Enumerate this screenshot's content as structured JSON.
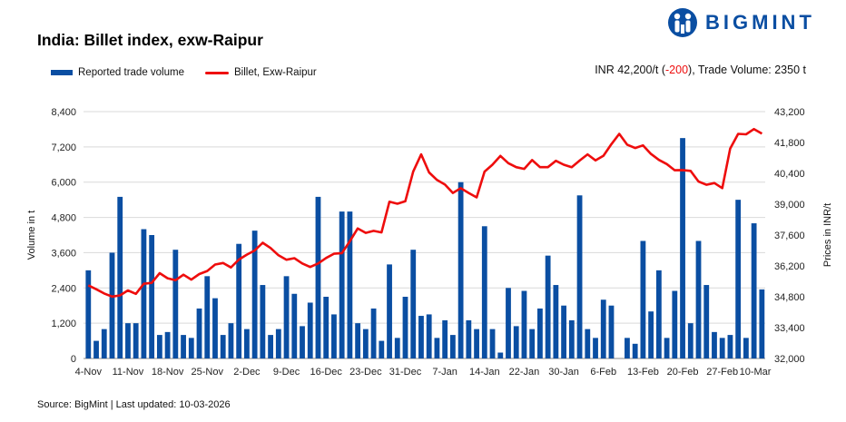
{
  "brand": {
    "name": "BIGMINT",
    "color": "#0a4ea2"
  },
  "header": {
    "title": "India: Billet index, exw-Raipur",
    "summary_prefix": "INR 42,200/t (",
    "summary_change": "-200",
    "summary_suffix": "), Trade Volume: 2350 t"
  },
  "footer": {
    "source": "Source: BigMint | Last updated: 10-03-2026"
  },
  "chart_data": {
    "type": "bar+line",
    "title": "India: Billet index, exw-Raipur",
    "legend_position": "top-left",
    "grid": true,
    "x_tick_labels": [
      "4-Nov",
      "11-Nov",
      "18-Nov",
      "25-Nov",
      "2-Dec",
      "9-Dec",
      "16-Dec",
      "23-Dec",
      "31-Dec",
      "7-Jan",
      "14-Jan",
      "22-Jan",
      "30-Jan",
      "6-Feb",
      "13-Feb",
      "20-Feb",
      "27-Feb",
      "10-Mar"
    ],
    "x_tick_every": 5,
    "y_left": {
      "label": "Volume in t",
      "min": 0,
      "max": 8400,
      "step": 1200,
      "ticks": [
        "0",
        "1,200",
        "2,400",
        "3,600",
        "4,800",
        "6,000",
        "7,200",
        "8,400"
      ]
    },
    "y_right": {
      "label": "Prices in INR/t",
      "min": 32000,
      "max": 43200,
      "step": 1400,
      "ticks": [
        "32,000",
        "33,400",
        "34,800",
        "36,200",
        "37,600",
        "39,000",
        "40,400",
        "41,800",
        "43,200"
      ]
    },
    "series": [
      {
        "name": "Reported trade volume",
        "type": "bar",
        "axis": "left",
        "color": "#0a4ea2",
        "values": [
          3000,
          600,
          1000,
          3600,
          5500,
          1200,
          1200,
          4400,
          4200,
          800,
          900,
          3700,
          800,
          700,
          1700,
          2800,
          2050,
          800,
          1200,
          3900,
          1000,
          4350,
          2500,
          800,
          1000,
          2800,
          2200,
          1100,
          1900,
          5500,
          2100,
          1500,
          5000,
          5000,
          1200,
          1000,
          1700,
          600,
          3200,
          700,
          2100,
          3700,
          1450,
          1500,
          700,
          1300,
          800,
          6000,
          1300,
          1000,
          4500,
          1000,
          200,
          2400,
          1100,
          2300,
          1000,
          1700,
          3500,
          2500,
          1800,
          1300,
          5550,
          1000,
          700,
          2000,
          1800,
          0,
          700,
          500,
          4000,
          1600,
          3000,
          700,
          2300,
          7500,
          1200,
          4000,
          2500,
          900,
          700,
          800,
          5400,
          700,
          4600,
          2350
        ]
      },
      {
        "name": "Billet, Exw-Raipur",
        "type": "line",
        "axis": "right",
        "color": "#ee0d0d",
        "values": [
          35320,
          35140,
          34950,
          34810,
          34860,
          35090,
          34930,
          35390,
          35430,
          35870,
          35640,
          35550,
          35800,
          35580,
          35830,
          35970,
          36260,
          36330,
          36130,
          36490,
          36710,
          36900,
          37250,
          37010,
          36680,
          36480,
          36550,
          36310,
          36150,
          36310,
          36560,
          36750,
          36780,
          37320,
          37900,
          37700,
          37790,
          37720,
          39110,
          39020,
          39130,
          40480,
          41260,
          40440,
          40100,
          39890,
          39510,
          39730,
          39510,
          39310,
          40480,
          40790,
          41190,
          40860,
          40680,
          40600,
          41000,
          40680,
          40680,
          40970,
          40790,
          40680,
          40980,
          41260,
          40990,
          41200,
          41720,
          42190,
          41700,
          41550,
          41670,
          41280,
          41010,
          40820,
          40540,
          40550,
          40510,
          40030,
          39880,
          39960,
          39730,
          41520,
          42190,
          42170,
          42410,
          42200
        ]
      }
    ]
  }
}
